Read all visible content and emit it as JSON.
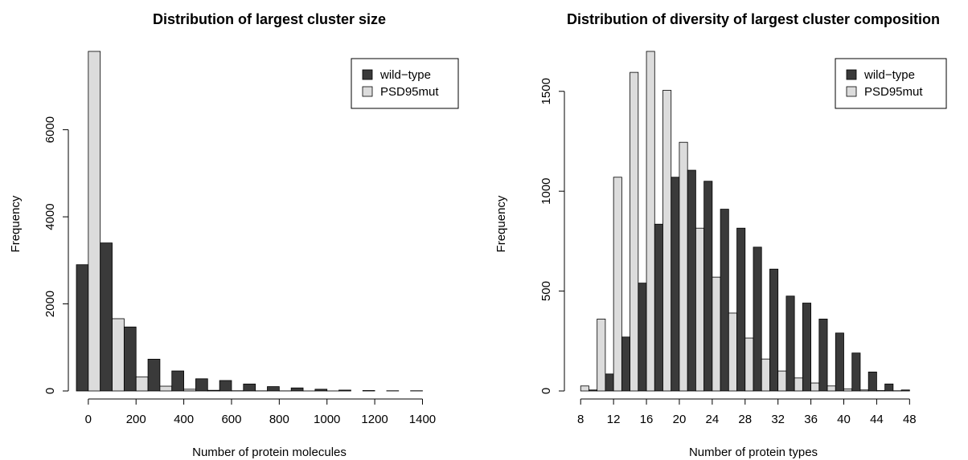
{
  "colors": {
    "wild_type": "#3a3a3a",
    "psd95mut": "#dcdcdc",
    "stroke": "#000000"
  },
  "chart_data": [
    {
      "type": "bar",
      "title": "Distribution of largest cluster size",
      "xlabel": "Number of protein molecules",
      "ylabel": "Frequency",
      "x_ticks": [
        "0",
        "200",
        "400",
        "600",
        "800",
        "1000",
        "1200",
        "1400"
      ],
      "y_ticks": [
        "0",
        "2000",
        "4000",
        "6000"
      ],
      "xlim": [
        -50,
        1550
      ],
      "ylim": [
        0,
        7800
      ],
      "bin_width": 100,
      "bins_start": [
        0,
        100,
        200,
        300,
        400,
        500,
        600,
        700,
        800,
        900,
        1000,
        1100,
        1200,
        1300,
        1400
      ],
      "legend_position": "top-right",
      "series": [
        {
          "name": "wild−type",
          "values": [
            2900,
            3400,
            1470,
            730,
            460,
            280,
            240,
            160,
            100,
            70,
            40,
            20,
            10,
            5,
            5
          ]
        },
        {
          "name": "PSD95mut",
          "values": [
            7800,
            1660,
            320,
            110,
            40,
            15,
            5,
            3,
            2,
            1,
            1,
            0,
            0,
            0,
            0
          ]
        }
      ]
    },
    {
      "type": "bar",
      "title": "Distribution of diversity of largest cluster composition",
      "xlabel": "Number of protein types",
      "ylabel": "Frequency",
      "x_ticks": [
        "8",
        "12",
        "16",
        "20",
        "24",
        "28",
        "32",
        "36",
        "40",
        "44",
        "48"
      ],
      "y_ticks": [
        "0",
        "500",
        "1000",
        "1500"
      ],
      "xlim": [
        7,
        51
      ],
      "ylim": [
        0,
        1700
      ],
      "bin_width": 2,
      "bins_start": [
        8,
        10,
        12,
        14,
        16,
        18,
        20,
        22,
        24,
        26,
        28,
        30,
        32,
        34,
        36,
        38,
        40,
        42,
        44,
        46,
        48
      ],
      "legend_position": "top-right",
      "series": [
        {
          "name": "wild−type",
          "values": [
            0,
            5,
            85,
            270,
            540,
            835,
            1070,
            1105,
            1050,
            910,
            815,
            720,
            610,
            475,
            440,
            360,
            290,
            190,
            95,
            35,
            5
          ]
        },
        {
          "name": "PSD95mut",
          "values": [
            25,
            360,
            1070,
            1595,
            1700,
            1505,
            1245,
            815,
            570,
            390,
            265,
            160,
            100,
            65,
            40,
            25,
            10,
            5,
            2,
            1,
            0
          ]
        }
      ]
    }
  ]
}
